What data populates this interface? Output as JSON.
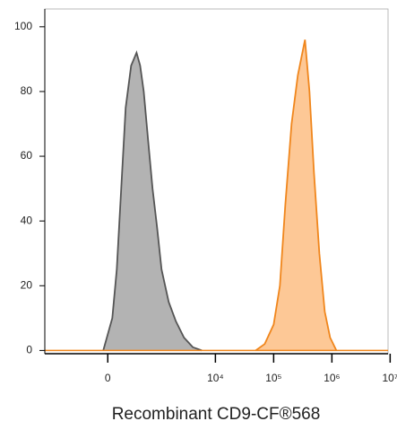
{
  "chart_data": {
    "type": "area",
    "x_label": "Recombinant CD9-CF®568",
    "xscale": "biexponential",
    "xlim": [
      -1700,
      9200000
    ],
    "xticks": [
      {
        "value": 0,
        "label": "0"
      },
      {
        "value": 10000,
        "label": "10⁴"
      },
      {
        "value": 100000,
        "label": "10⁵"
      },
      {
        "value": 1000000,
        "label": "10⁶"
      },
      {
        "value": 10000000,
        "label": "10⁷"
      }
    ],
    "ylim": [
      -1,
      105.5
    ],
    "yticks": [
      0,
      20,
      40,
      60,
      80,
      100
    ],
    "series": [
      {
        "color": "#555555",
        "fill": "#b3b3b3",
        "x": [
          -51,
          51,
          103,
          158,
          218,
          301,
          397,
          471,
          554,
          670,
          809,
          977,
          1173,
          1565,
          2087,
          2877,
          4090,
          5850
        ],
        "values": [
          0,
          10,
          25,
          50,
          75,
          88,
          92,
          88,
          80,
          65,
          50,
          38,
          25,
          15,
          9,
          4,
          1,
          0
        ]
      },
      {
        "color": "#f0861c",
        "fill": "#fdc896",
        "x": [
          49200,
          70200,
          100000,
          128000,
          158500,
          203000,
          260000,
          345000,
          412000,
          492000,
          609000,
          754000,
          931000,
          1194000
        ],
        "values": [
          0,
          2,
          8,
          20,
          45,
          70,
          85,
          96,
          80,
          55,
          30,
          12,
          4,
          0
        ]
      }
    ]
  }
}
